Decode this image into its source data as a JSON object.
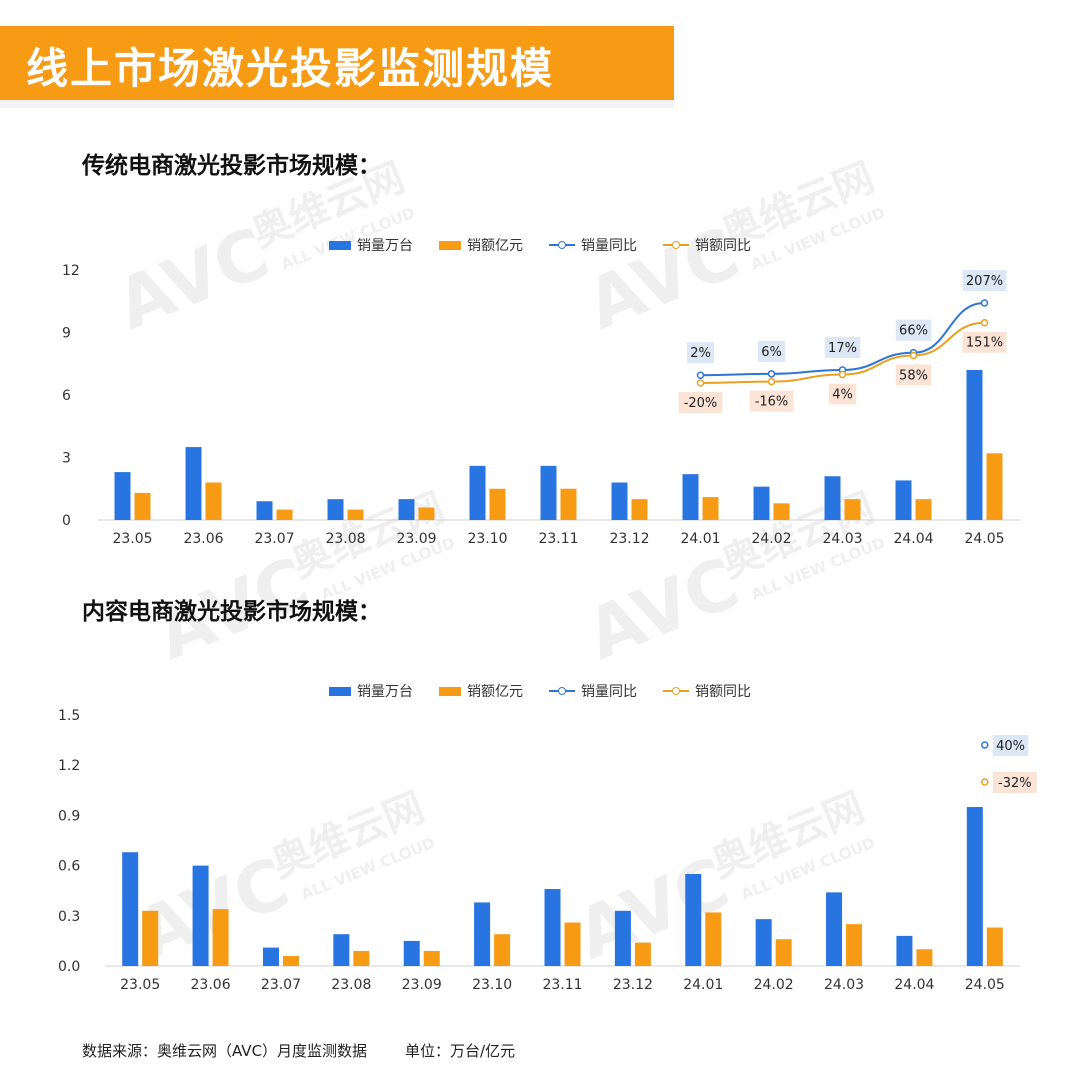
{
  "page_title": "线上市场激光投影监测规模",
  "colors": {
    "banner": "#f79a14",
    "blue": "#2874e0",
    "orange": "#f79a14",
    "line_blue": "#2e75d6",
    "line_orange": "#e8a020",
    "label_blue_bg": "#dce8f6",
    "label_orange_bg": "#fbe4d6"
  },
  "legend": {
    "bar1": "销量万台",
    "bar2": "销额亿元",
    "line1": "销量同比",
    "line2": "销额同比"
  },
  "watermark": {
    "brand": "奥维云网",
    "sub": "ALL VIEW CLOUD",
    "logo": "AVC"
  },
  "chart_data": [
    {
      "type": "bar",
      "title": "传统电商激光投影市场规模：",
      "categories": [
        "23.05",
        "23.06",
        "23.07",
        "23.08",
        "23.09",
        "23.10",
        "23.11",
        "23.12",
        "24.01",
        "24.02",
        "24.03",
        "24.04",
        "24.05"
      ],
      "yticks": [
        "0",
        "3",
        "6",
        "9",
        "12"
      ],
      "ylim": [
        0,
        12
      ],
      "series": [
        {
          "name": "销量万台",
          "values": [
            2.3,
            3.5,
            0.9,
            1.0,
            1.0,
            2.6,
            2.6,
            1.8,
            2.2,
            1.6,
            2.1,
            1.9,
            7.2
          ]
        },
        {
          "name": "销额亿元",
          "values": [
            1.3,
            1.8,
            0.5,
            0.5,
            0.6,
            1.5,
            1.5,
            1.0,
            1.1,
            0.8,
            1.0,
            1.0,
            3.2
          ]
        }
      ],
      "yoy": [
        {
          "name": "销量同比",
          "categories": [
            "24.01",
            "24.02",
            "24.03",
            "24.04",
            "24.05"
          ],
          "labels": [
            "2%",
            "6%",
            "17%",
            "66%",
            "207%"
          ],
          "values": [
            2,
            6,
            17,
            66,
            207
          ]
        },
        {
          "name": "销额同比",
          "categories": [
            "24.01",
            "24.02",
            "24.03",
            "24.04",
            "24.05"
          ],
          "labels": [
            "-20%",
            "-16%",
            "4%",
            "58%",
            "151%"
          ],
          "values": [
            -20,
            -16,
            4,
            58,
            151
          ]
        }
      ]
    },
    {
      "type": "bar",
      "title": "内容电商激光投影市场规模：",
      "categories": [
        "23.05",
        "23.06",
        "23.07",
        "23.08",
        "23.09",
        "23.10",
        "23.11",
        "23.12",
        "24.01",
        "24.02",
        "24.03",
        "24.04",
        "24.05"
      ],
      "yticks": [
        "0.0",
        "0.3",
        "0.6",
        "0.9",
        "1.2",
        "1.5"
      ],
      "ylim": [
        0,
        1.5
      ],
      "series": [
        {
          "name": "销量万台",
          "values": [
            0.68,
            0.6,
            0.11,
            0.19,
            0.15,
            0.38,
            0.46,
            0.33,
            0.55,
            0.28,
            0.44,
            0.18,
            0.95
          ]
        },
        {
          "name": "销额亿元",
          "values": [
            0.33,
            0.34,
            0.06,
            0.09,
            0.09,
            0.19,
            0.26,
            0.14,
            0.32,
            0.16,
            0.25,
            0.1,
            0.23
          ]
        }
      ],
      "yoy": [
        {
          "name": "销量同比",
          "categories": [
            "24.05"
          ],
          "labels": [
            "40%"
          ],
          "values": [
            40
          ]
        },
        {
          "name": "销额同比",
          "categories": [
            "24.05"
          ],
          "labels": [
            "-32%"
          ],
          "values": [
            -32
          ]
        }
      ]
    }
  ],
  "footer": {
    "source": "数据来源：奥维云网（AVC）月度监测数据",
    "unit": "单位：万台/亿元"
  }
}
